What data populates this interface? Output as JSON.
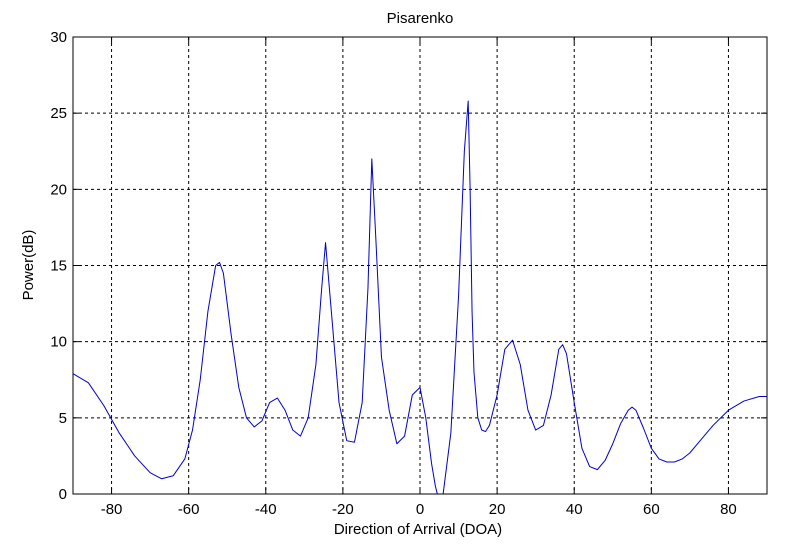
{
  "chart_data": {
    "type": "line",
    "title": "Pisarenko",
    "xlabel": "Direction of Arrival (DOA)",
    "ylabel": "Power(dB)",
    "xlim": [
      -90,
      90
    ],
    "ylim": [
      0,
      30
    ],
    "xticks": [
      -80,
      -60,
      -40,
      -20,
      0,
      20,
      40,
      60,
      80
    ],
    "yticks": [
      0,
      5,
      10,
      15,
      20,
      25,
      30
    ],
    "grid": true,
    "line_color": "#0000cc",
    "series": [
      {
        "x": [
          -90,
          -86,
          -82,
          -78,
          -74,
          -70,
          -67,
          -64,
          -61,
          -59,
          -57,
          -55,
          -53,
          -52,
          -51,
          -49,
          -47,
          -45,
          -43,
          -41,
          -39,
          -37,
          -35,
          -33,
          -31,
          -29,
          -27,
          -25.5,
          -24.5,
          -23,
          -21,
          -19,
          -17,
          -15,
          -13.5,
          -12.5,
          -11.5,
          -10,
          -8,
          -6,
          -4,
          -2,
          0,
          1.5,
          3,
          4,
          5,
          6,
          8,
          10,
          11.5,
          12.5,
          13,
          13.5,
          14,
          15,
          16,
          17,
          18,
          20,
          22,
          24,
          26,
          28,
          30,
          32,
          34,
          36,
          37,
          38,
          40,
          42,
          44,
          46,
          48,
          50,
          52,
          54,
          55,
          56,
          58,
          60,
          62,
          64,
          66,
          68,
          70,
          72,
          76,
          80,
          84,
          88,
          90
        ],
        "y": [
          7.9,
          7.3,
          5.8,
          4.0,
          2.5,
          1.4,
          1.0,
          1.2,
          2.3,
          4.2,
          7.5,
          12.0,
          15.0,
          15.2,
          14.5,
          10.5,
          7.0,
          5.0,
          4.4,
          4.8,
          6.0,
          6.3,
          5.5,
          4.2,
          3.8,
          5.0,
          8.5,
          13.5,
          16.5,
          12.0,
          6.0,
          3.5,
          3.4,
          6.0,
          13.5,
          22.0,
          17.0,
          9.0,
          5.5,
          3.3,
          3.8,
          6.5,
          7.0,
          5.0,
          2.0,
          0.5,
          -0.5,
          0.0,
          4.0,
          13.0,
          22.5,
          25.8,
          20.0,
          12.0,
          8.0,
          5.0,
          4.2,
          4.1,
          4.5,
          6.5,
          9.5,
          10.1,
          8.5,
          5.5,
          4.2,
          4.5,
          6.5,
          9.5,
          9.8,
          9.2,
          6.0,
          3.0,
          1.8,
          1.6,
          2.2,
          3.3,
          4.6,
          5.5,
          5.7,
          5.5,
          4.3,
          3.0,
          2.3,
          2.1,
          2.1,
          2.3,
          2.7,
          3.3,
          4.5,
          5.5,
          6.1,
          6.4,
          6.4
        ]
      }
    ]
  }
}
